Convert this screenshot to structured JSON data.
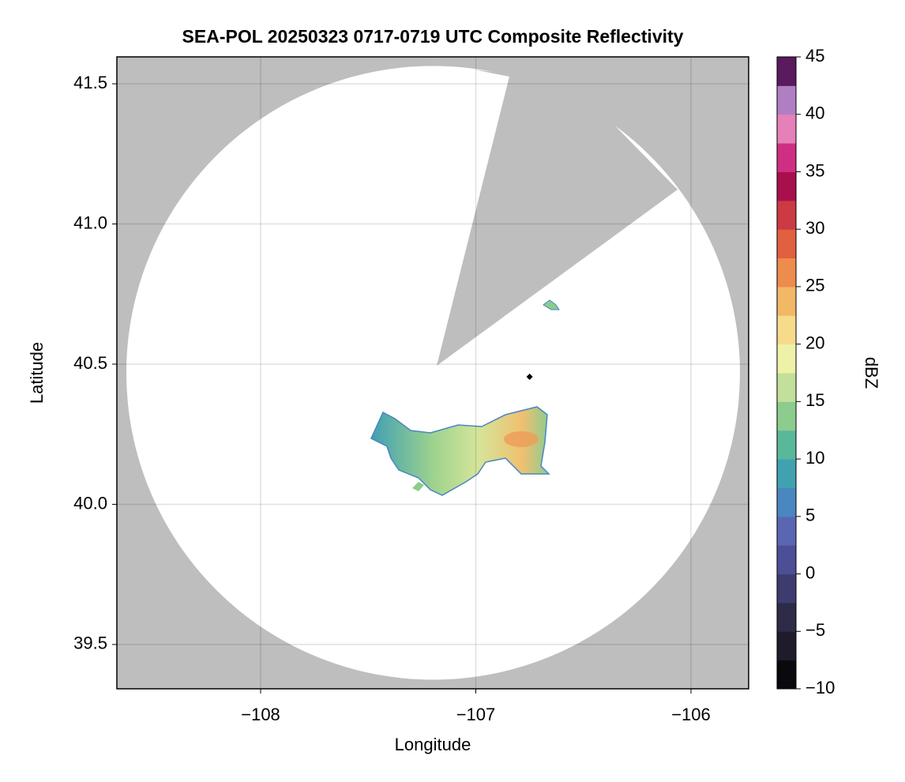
{
  "chart_data": {
    "type": "map",
    "title": "SEA-POL 20250323 0717-0719 UTC Composite Reflectivity",
    "x_label": "Longitude",
    "y_label": "Latitude",
    "xlim": [
      -108.668,
      -105.732
    ],
    "ylim": [
      39.342,
      41.596
    ],
    "xticks": [
      {
        "value": -108,
        "label": "−108"
      },
      {
        "value": -107,
        "label": "−107"
      },
      {
        "value": -106,
        "label": "−106"
      }
    ],
    "yticks": [
      39.5,
      {
        "value": 40.0,
        "label": "40.0"
      },
      40.5,
      {
        "value": 41.0,
        "label": "41.0"
      },
      41.5
    ],
    "grid": true,
    "site_marker": {
      "x": -106.75,
      "y": 40.455,
      "color": "#000000"
    },
    "colorbar": {
      "label": "dBZ",
      "lim": [
        -10,
        45
      ],
      "ticks": [
        {
          "value": -10,
          "label": "−10"
        },
        {
          "value": -5,
          "label": "−5"
        },
        0,
        5,
        10,
        15,
        20,
        25,
        30,
        35,
        40,
        45
      ],
      "colors": [
        "#0a0a0e",
        "#1f1b2a",
        "#2e2b48",
        "#3e3c6e",
        "#4d4f96",
        "#5b66b3",
        "#4a86bf",
        "#40a2b0",
        "#5ab89a",
        "#8ccc8e",
        "#c2e09a",
        "#eef2a8",
        "#f6dc8a",
        "#f1b866",
        "#ed8c4c",
        "#e0603f",
        "#cc3a44",
        "#a8104c",
        "#cf2f82",
        "#e680b8",
        "#b07ec2",
        "#5a1a5e"
      ]
    }
  }
}
